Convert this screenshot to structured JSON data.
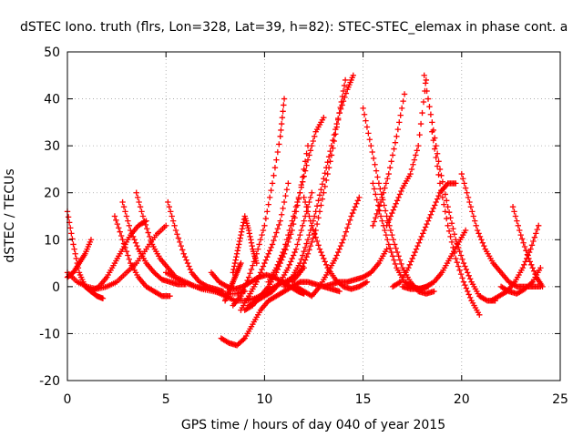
{
  "chart_data": {
    "type": "scatter",
    "title": "dSTEC Iono. truth (flrs, Lon=328, Lat=39, h=82): STEC-STEC_elemax in phase cont. a",
    "xlabel": "GPS time / hours of day 040 of year 2015",
    "ylabel": "dSTEC  / TECUs",
    "xlim": [
      0,
      25
    ],
    "ylim": [
      -20,
      50
    ],
    "x_ticks": [
      "0",
      "5",
      "10",
      "15",
      "20",
      "25"
    ],
    "y_ticks": [
      "-20",
      "-10",
      "0",
      "10",
      "20",
      "30",
      "40",
      "50"
    ],
    "grid": true,
    "marker": "+",
    "color": "#ff0000",
    "series": [
      {
        "x": [
          0.0,
          0.3,
          0.6,
          0.9,
          1.2,
          1.5,
          1.8
        ],
        "y": [
          16,
          9,
          3,
          0,
          -1,
          -2,
          -2.5
        ]
      },
      {
        "x": [
          0.0,
          0.3,
          0.6,
          0.9,
          1.2
        ],
        "y": [
          2,
          3,
          5,
          7,
          10
        ]
      },
      {
        "x": [
          0.0,
          0.5,
          1.0,
          1.5,
          2.0,
          2.5,
          3.0,
          3.5,
          4.0,
          4.5,
          5.0
        ],
        "y": [
          3,
          1,
          0,
          -0.5,
          0,
          1,
          3,
          5,
          8,
          11,
          13
        ]
      },
      {
        "x": [
          2.4,
          2.8,
          3.2,
          3.6,
          4.0,
          4.4,
          4.8,
          5.2
        ],
        "y": [
          15,
          10,
          5,
          2,
          0,
          -1,
          -2,
          -2
        ]
      },
      {
        "x": [
          1.2,
          1.6,
          2.0,
          2.4,
          2.8,
          3.2,
          3.6,
          4.0
        ],
        "y": [
          -1,
          0,
          2,
          5,
          8,
          11,
          13,
          14
        ]
      },
      {
        "x": [
          2.8,
          3.2,
          3.6,
          4.0,
          4.4,
          4.8,
          5.2,
          5.6,
          6.0
        ],
        "y": [
          18,
          12,
          8,
          5,
          3,
          1.5,
          1,
          0.5,
          0.5
        ]
      },
      {
        "x": [
          3.5,
          3.9,
          4.3,
          4.7,
          5.1,
          5.5,
          6.0,
          6.5,
          7.0
        ],
        "y": [
          20,
          14,
          9,
          6,
          4,
          2,
          1,
          0,
          -0.5
        ]
      },
      {
        "x": [
          5.1,
          5.5,
          5.9,
          6.3,
          6.7,
          7.1,
          7.5,
          7.9
        ],
        "y": [
          18,
          12,
          7,
          3,
          1,
          0,
          -0.5,
          -1
        ]
      },
      {
        "x": [
          5.0,
          5.6,
          6.2,
          6.8,
          7.4,
          8.0,
          8.6,
          9.0
        ],
        "y": [
          3,
          1.5,
          0.5,
          -0.5,
          -1,
          -1.5,
          -1.5,
          -1
        ]
      },
      {
        "x": [
          7.0,
          7.5,
          8.0,
          8.5,
          9.0,
          9.5,
          10.0,
          10.5,
          11.0,
          11.5,
          12.0
        ],
        "y": [
          0,
          -1,
          -2,
          -3,
          -3,
          -2.5,
          -1.5,
          0,
          1,
          2,
          4
        ]
      },
      {
        "x": [
          7.3,
          7.7,
          8.1,
          8.5,
          8.9,
          9.3,
          9.7,
          10.1,
          10.5,
          10.9,
          11.3,
          11.7,
          12.0
        ],
        "y": [
          3,
          1,
          0,
          -0.5,
          0,
          1,
          2,
          2.5,
          2,
          1,
          0,
          -1,
          -1.5
        ]
      },
      {
        "x": [
          7.8,
          8.2,
          8.6,
          9.0,
          9.4,
          9.8,
          10.2,
          10.6,
          11.0,
          11.4,
          11.8,
          12.2,
          12.6,
          13.0,
          13.4,
          13.8
        ],
        "y": [
          -11,
          -12,
          -12.5,
          -11,
          -8,
          -5,
          -3,
          -2,
          -1,
          0,
          1,
          1,
          0.5,
          0,
          -0.5,
          -1
        ]
      },
      {
        "x": [
          8.0,
          8.2,
          8.4,
          8.6,
          8.8
        ],
        "y": [
          -3,
          -1,
          1,
          3,
          5
        ]
      },
      {
        "x": [
          8.4,
          8.6,
          8.8,
          9.0,
          9.2,
          9.4,
          9.6
        ],
        "y": [
          3,
          7,
          11,
          15,
          12,
          8,
          5
        ]
      },
      {
        "x": [
          8.4,
          8.8,
          9.2,
          9.6,
          10.0,
          10.4,
          10.8,
          11.0
        ],
        "y": [
          -4,
          -2,
          2,
          7,
          13,
          22,
          32,
          40
        ]
      },
      {
        "x": [
          8.8,
          9.2,
          9.6,
          10.0,
          10.4,
          10.8,
          11.2
        ],
        "y": [
          -5,
          -2,
          1,
          5,
          9,
          14,
          22
        ]
      },
      {
        "x": [
          9.0,
          9.4,
          9.8,
          10.2,
          10.6,
          11.0,
          11.4,
          11.8,
          12.2
        ],
        "y": [
          -5,
          -4,
          -2,
          0,
          3,
          7,
          12,
          20,
          30
        ]
      },
      {
        "x": [
          9.2,
          9.6,
          10.0,
          10.4,
          10.8,
          11.2,
          11.6,
          12.0,
          12.4
        ],
        "y": [
          -4,
          -3,
          -2,
          -1,
          1,
          4,
          8,
          14,
          20
        ]
      },
      {
        "x": [
          10.2,
          10.6,
          11.0,
          11.4,
          11.8,
          12.2,
          12.6,
          13.0
        ],
        "y": [
          1,
          4,
          8,
          14,
          20,
          27,
          33,
          36
        ]
      },
      {
        "x": [
          11.0,
          11.4,
          11.8,
          12.2,
          12.6,
          13.0,
          13.4,
          13.8,
          14.2,
          14.5
        ],
        "y": [
          0,
          2,
          5,
          10,
          16,
          23,
          30,
          37,
          42,
          45
        ]
      },
      {
        "x": [
          11.4,
          11.8,
          12.2,
          12.6,
          13.0,
          13.4,
          13.8,
          14.1
        ],
        "y": [
          1,
          3,
          7,
          12,
          20,
          28,
          37,
          44
        ]
      },
      {
        "x": [
          11.6,
          12.0,
          12.4,
          12.8,
          13.2,
          13.6,
          14.0,
          14.4,
          14.8
        ],
        "y": [
          0,
          -1,
          -2,
          0,
          3,
          6,
          10,
          15,
          19
        ]
      },
      {
        "x": [
          12.0,
          12.4,
          12.8,
          13.2,
          13.6,
          14.0,
          14.4,
          14.8,
          15.2
        ],
        "y": [
          19,
          13,
          8,
          4,
          1.5,
          0,
          -0.5,
          0,
          1
        ]
      },
      {
        "x": [
          13.0,
          13.4,
          13.8,
          14.2,
          14.6,
          15.0,
          15.4,
          15.8,
          16.2
        ],
        "y": [
          0,
          0.5,
          1,
          1,
          1.5,
          2,
          3,
          5,
          8
        ]
      },
      {
        "x": [
          15.0,
          15.4,
          15.8,
          16.2,
          16.6,
          17.0,
          17.4,
          17.8,
          18.2,
          18.6
        ],
        "y": [
          38,
          30,
          22,
          15,
          9,
          4,
          1,
          -1,
          -1.5,
          -1
        ]
      },
      {
        "x": [
          15.5,
          15.9,
          16.3,
          16.7,
          17.1,
          17.5,
          17.9,
          18.3
        ],
        "y": [
          22,
          15,
          9,
          4,
          1,
          0,
          -0.5,
          0
        ]
      },
      {
        "x": [
          15.5,
          15.9,
          16.3,
          16.7,
          17.1
        ],
        "y": [
          13,
          18,
          24,
          32,
          41
        ]
      },
      {
        "x": [
          16.2,
          16.6,
          17.0,
          17.4,
          17.8,
          18.2
        ],
        "y": [
          13,
          17,
          21,
          24,
          30,
          44
        ]
      },
      {
        "x": [
          16.5,
          16.9,
          17.3,
          17.7,
          18.1,
          18.5,
          18.9,
          19.3,
          19.7
        ],
        "y": [
          0,
          1,
          4,
          8,
          12,
          16,
          20,
          22,
          22
        ]
      },
      {
        "x": [
          17.0,
          17.4,
          17.8,
          18.2,
          18.6,
          19.0,
          19.4,
          19.8,
          20.2
        ],
        "y": [
          0,
          -0.5,
          -0.5,
          0,
          1,
          3,
          6,
          9,
          12
        ]
      },
      {
        "x": [
          18.1,
          18.5,
          18.9,
          19.3,
          19.7,
          20.1,
          20.5,
          20.9,
          21.3,
          21.7
        ],
        "y": [
          45,
          35,
          25,
          17,
          10,
          5,
          1,
          -2,
          -3,
          -3
        ]
      },
      {
        "x": [
          18.5,
          18.9,
          19.3,
          19.7,
          20.1,
          20.5,
          20.9
        ],
        "y": [
          33,
          22,
          13,
          6,
          1,
          -3,
          -6
        ]
      },
      {
        "x": [
          20.0,
          20.4,
          20.8,
          21.2,
          21.6,
          22.0,
          22.4,
          22.8,
          23.2,
          23.6,
          24.0
        ],
        "y": [
          24,
          18,
          12,
          8,
          5,
          3,
          1,
          0,
          0,
          0,
          0
        ]
      },
      {
        "x": [
          21.5,
          21.9,
          22.3,
          22.7,
          23.1,
          23.5,
          23.9
        ],
        "y": [
          -3,
          -2,
          -1,
          1,
          4,
          8,
          13
        ]
      },
      {
        "x": [
          22.6,
          23.0,
          23.4,
          23.8,
          24.1
        ],
        "y": [
          17,
          11,
          6,
          2,
          0
        ]
      },
      {
        "x": [
          22.0,
          22.4,
          22.8,
          23.2,
          23.6,
          24.0
        ],
        "y": [
          0,
          -1,
          -1.5,
          -0.5,
          1,
          4
        ]
      }
    ]
  }
}
